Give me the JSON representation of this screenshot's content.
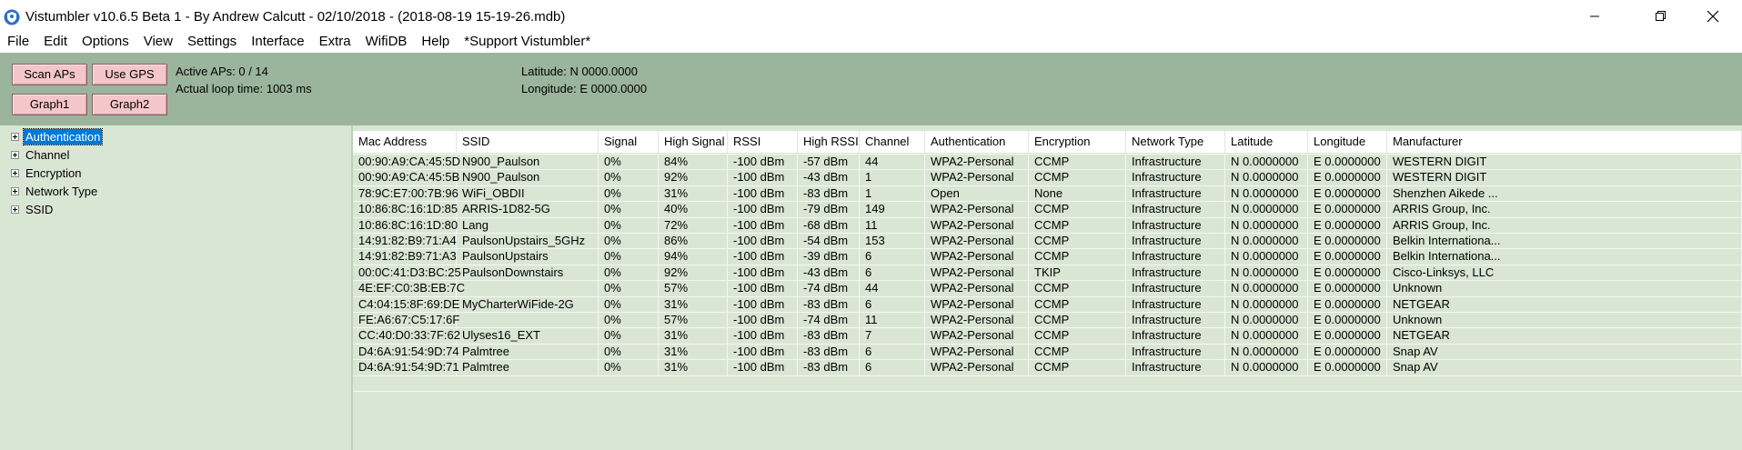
{
  "window": {
    "title": "Vistumbler v10.6.5 Beta 1 - By Andrew Calcutt - 02/10/2018 - (2018-08-19 15-19-26.mdb)"
  },
  "menu": [
    "File",
    "Edit",
    "Options",
    "View",
    "Settings",
    "Interface",
    "Extra",
    "WifiDB",
    "Help",
    "*Support Vistumbler*"
  ],
  "toolbar": {
    "scan_label": "Scan APs",
    "gps_label": "Use GPS",
    "graph1_label": "Graph1",
    "graph2_label": "Graph2",
    "active_aps": "Active APs: 0 / 14",
    "loop_time": "Actual loop time: 1003 ms",
    "latitude": "Latitude: N 0000.0000",
    "longitude": "Longitude: E 0000.0000"
  },
  "tree": {
    "items": [
      "Authentication",
      "Channel",
      "Encryption",
      "Network Type",
      "SSID"
    ]
  },
  "table": {
    "headers": [
      "Mac Address",
      "SSID",
      "Signal",
      "High Signal",
      "RSSI",
      "High RSSI",
      "Channel",
      "Authentication",
      "Encryption",
      "Network Type",
      "Latitude",
      "Longitude",
      "Manufacturer"
    ],
    "rows": [
      [
        "00:90:A9:CA:45:5D",
        "N900_Paulson",
        "0%",
        "84%",
        "-100 dBm",
        "-57 dBm",
        "44",
        "WPA2-Personal",
        "CCMP",
        "Infrastructure",
        "N 0.0000000",
        "E 0.0000000",
        "WESTERN DIGIT"
      ],
      [
        "00:90:A9:CA:45:5B",
        "N900_Paulson",
        "0%",
        "92%",
        "-100 dBm",
        "-43 dBm",
        "1",
        "WPA2-Personal",
        "CCMP",
        "Infrastructure",
        "N 0.0000000",
        "E 0.0000000",
        "WESTERN DIGIT"
      ],
      [
        "78:9C:E7:00:7B:96",
        "WiFi_OBDII",
        "0%",
        "31%",
        "-100 dBm",
        "-83 dBm",
        "1",
        "Open",
        "None",
        "Infrastructure",
        "N 0.0000000",
        "E 0.0000000",
        "Shenzhen Aikede ..."
      ],
      [
        "10:86:8C:16:1D:85",
        "ARRIS-1D82-5G",
        "0%",
        "40%",
        "-100 dBm",
        "-79 dBm",
        "149",
        "WPA2-Personal",
        "CCMP",
        "Infrastructure",
        "N 0.0000000",
        "E 0.0000000",
        "ARRIS Group, Inc."
      ],
      [
        "10:86:8C:16:1D:80",
        "Lang",
        "0%",
        "72%",
        "-100 dBm",
        "-68 dBm",
        "11",
        "WPA2-Personal",
        "CCMP",
        "Infrastructure",
        "N 0.0000000",
        "E 0.0000000",
        "ARRIS Group, Inc."
      ],
      [
        "14:91:82:B9:71:A4",
        "PaulsonUpstairs_5GHz",
        "0%",
        "86%",
        "-100 dBm",
        "-54 dBm",
        "153",
        "WPA2-Personal",
        "CCMP",
        "Infrastructure",
        "N 0.0000000",
        "E 0.0000000",
        "Belkin Internationa..."
      ],
      [
        "14:91:82:B9:71:A3",
        "PaulsonUpstairs",
        "0%",
        "94%",
        "-100 dBm",
        "-39 dBm",
        "6",
        "WPA2-Personal",
        "CCMP",
        "Infrastructure",
        "N 0.0000000",
        "E 0.0000000",
        "Belkin Internationa..."
      ],
      [
        "00:0C:41:D3:BC:25",
        "PaulsonDownstairs",
        "0%",
        "92%",
        "-100 dBm",
        "-43 dBm",
        "6",
        "WPA2-Personal",
        "TKIP",
        "Infrastructure",
        "N 0.0000000",
        "E 0.0000000",
        "Cisco-Linksys, LLC"
      ],
      [
        "4E:EF:C0:3B:EB:7C",
        "",
        "0%",
        "57%",
        "-100 dBm",
        "-74 dBm",
        "44",
        "WPA2-Personal",
        "CCMP",
        "Infrastructure",
        "N 0.0000000",
        "E 0.0000000",
        "Unknown"
      ],
      [
        "C4:04:15:8F:69:DE",
        "MyCharterWiFide-2G",
        "0%",
        "31%",
        "-100 dBm",
        "-83 dBm",
        "6",
        "WPA2-Personal",
        "CCMP",
        "Infrastructure",
        "N 0.0000000",
        "E 0.0000000",
        "NETGEAR"
      ],
      [
        "FE:A6:67:C5:17:6F",
        "",
        "0%",
        "57%",
        "-100 dBm",
        "-74 dBm",
        "11",
        "WPA2-Personal",
        "CCMP",
        "Infrastructure",
        "N 0.0000000",
        "E 0.0000000",
        "Unknown"
      ],
      [
        "CC:40:D0:33:7F:62",
        "Ulyses16_EXT",
        "0%",
        "31%",
        "-100 dBm",
        "-83 dBm",
        "7",
        "WPA2-Personal",
        "CCMP",
        "Infrastructure",
        "N 0.0000000",
        "E 0.0000000",
        "NETGEAR"
      ],
      [
        "D4:6A:91:54:9D:74",
        "Palmtree",
        "0%",
        "31%",
        "-100 dBm",
        "-83 dBm",
        "6",
        "WPA2-Personal",
        "CCMP",
        "Infrastructure",
        "N 0.0000000",
        "E 0.0000000",
        "Snap AV"
      ],
      [
        "D4:6A:91:54:9D:71",
        "Palmtree",
        "0%",
        "31%",
        "-100 dBm",
        "-83 dBm",
        "6",
        "WPA2-Personal",
        "CCMP",
        "Infrastructure",
        "N 0.0000000",
        "E 0.0000000",
        "Snap AV"
      ]
    ]
  },
  "colors": {
    "toolbar_bg": "#9bb59d",
    "panel_bg": "#d9e6d4",
    "button_bg": "#f4c6ca",
    "selection": "#0078d7"
  },
  "icons": {
    "app": "vistumbler-shield-icon",
    "minimize": "minimize-icon",
    "restore": "restore-icon",
    "close": "close-icon",
    "expander": "plus-box-icon"
  }
}
